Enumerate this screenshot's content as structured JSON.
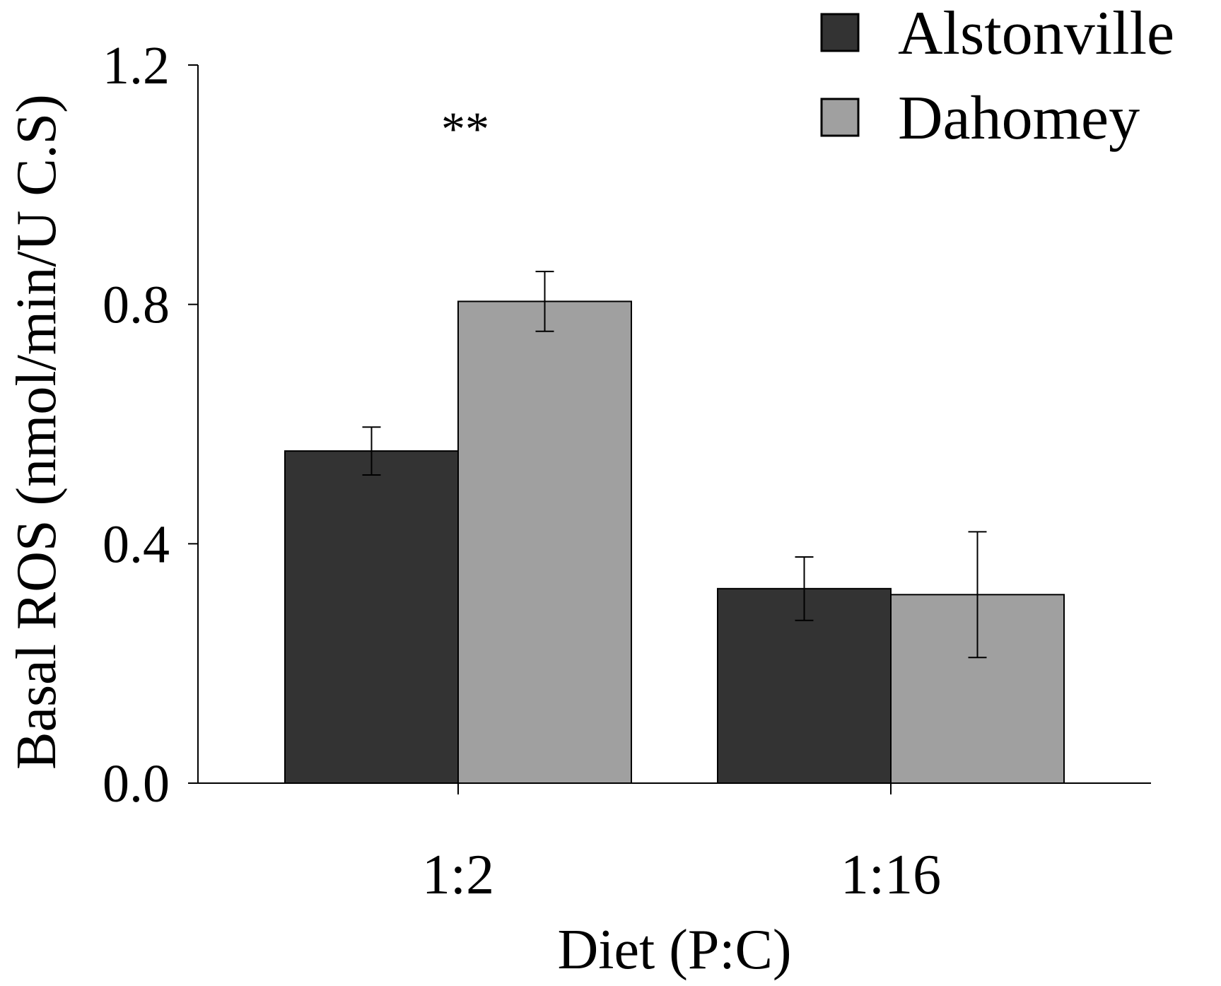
{
  "chart_data": {
    "type": "bar",
    "title": "",
    "xlabel": "Diet (P:C)",
    "ylabel": "Basal ROS (nmol/min/U C.S)",
    "categories": [
      "1:2",
      "1:16"
    ],
    "ylim": [
      0,
      1.2
    ],
    "yticks": [
      "0.0",
      "0.4",
      "0.8",
      "1.2"
    ],
    "series": [
      {
        "name": "Alstonville",
        "color": "#333333",
        "values": [
          0.555,
          0.325
        ],
        "errors": [
          0.04,
          0.053
        ]
      },
      {
        "name": "Dahomey",
        "color": "#a0a0a0",
        "values": [
          0.805,
          0.315
        ],
        "errors": [
          0.05,
          0.105
        ]
      }
    ],
    "annotations": [
      {
        "text": "**",
        "category": "1:2"
      }
    ],
    "legend_position": "top-right",
    "grid": false
  }
}
